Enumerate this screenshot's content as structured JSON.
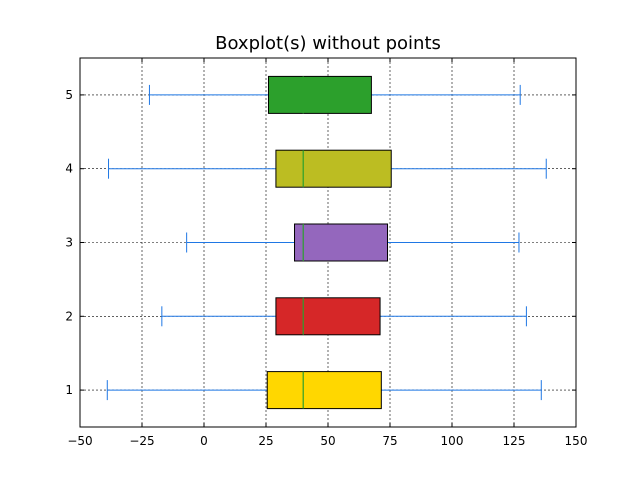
{
  "chart_data": {
    "type": "boxplot",
    "orientation": "horizontal",
    "title": "Boxplot(s) without points",
    "xlabel": "",
    "ylabel": "",
    "xlim": [
      -50,
      150
    ],
    "ylim": [
      0.5,
      5.5
    ],
    "xticks": [
      -50,
      -25,
      0,
      25,
      50,
      75,
      100,
      125,
      150
    ],
    "xtick_labels": [
      "−50",
      "−25",
      "0",
      "25",
      "50",
      "75",
      "100",
      "125",
      "150"
    ],
    "yticks": [
      1,
      2,
      3,
      4,
      5
    ],
    "ytick_labels": [
      "1",
      "2",
      "3",
      "4",
      "5"
    ],
    "grid": true,
    "whisker_color": "#1f77e4",
    "median_color": "#2ca02c",
    "series": [
      {
        "position": 1,
        "whislo": -39,
        "q1": 25.5,
        "median": 40,
        "q3": 71.5,
        "whishi": 136,
        "color": "#ffd700"
      },
      {
        "position": 2,
        "whislo": -17,
        "q1": 29,
        "median": 40,
        "q3": 71,
        "whishi": 130,
        "color": "#d62728"
      },
      {
        "position": 3,
        "whislo": -7,
        "q1": 36.5,
        "median": 40,
        "q3": 74,
        "whishi": 127,
        "color": "#9467bd"
      },
      {
        "position": 4,
        "whislo": -38.5,
        "q1": 29,
        "median": 40,
        "q3": 75.5,
        "whishi": 138,
        "color": "#bcbd22"
      },
      {
        "position": 5,
        "whislo": -22,
        "q1": 26,
        "median": 40,
        "q3": 67.5,
        "whishi": 127.5,
        "color": "#2ca02c"
      }
    ]
  }
}
